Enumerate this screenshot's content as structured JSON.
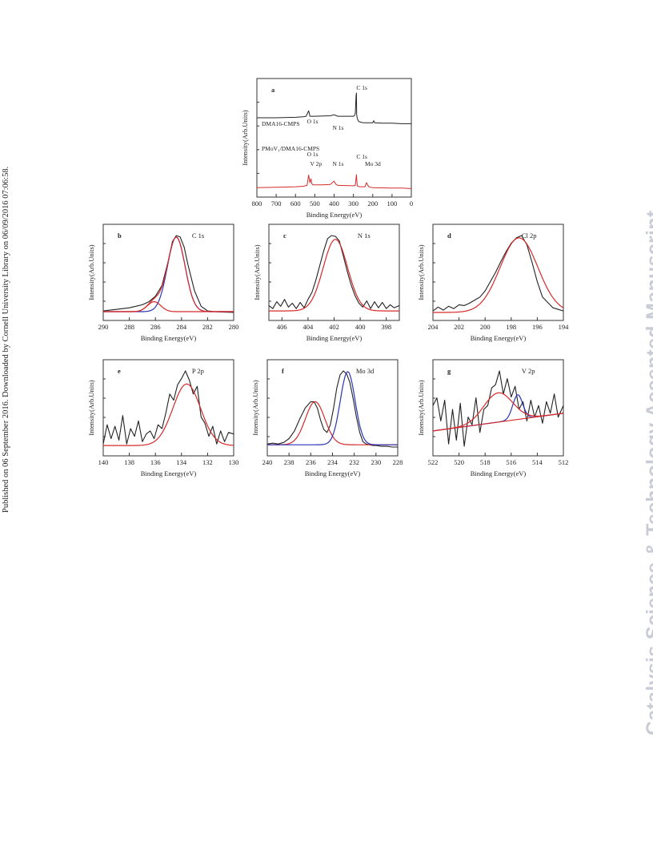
{
  "page": {
    "side_note": "Published on 06 September 2016. Downloaded by Cornell University Library on 06/09/2016 07:06:58.",
    "watermark": "Catalysis Science & Technology Accepted Manuscript"
  },
  "colors": {
    "raw": "#222222",
    "fit_red": "#d62a2a",
    "fit_blue": "#2b35b5"
  },
  "chart_data": [
    {
      "type": "line",
      "panel": "a",
      "xlabel": "Binding Energy(eV)",
      "ylabel": "Intensity(Arb.Units)",
      "xlim": [
        800,
        0
      ],
      "xticks": [
        800,
        700,
        600,
        500,
        400,
        300,
        200,
        100,
        0
      ],
      "y_scale": "arbitrary",
      "series": [
        {
          "name": "DMA16-CMPS",
          "color": "#222222",
          "x": [
            800,
            700,
            600,
            560,
            545,
            532,
            525,
            500,
            420,
            400,
            380,
            300,
            295,
            290,
            286,
            284.5,
            283,
            280,
            275,
            270,
            250,
            200,
            195,
            190,
            150,
            100,
            50,
            0
          ],
          "y": [
            0.5,
            0.5,
            0.51,
            0.52,
            0.53,
            0.64,
            0.53,
            0.53,
            0.54,
            0.56,
            0.53,
            0.53,
            0.54,
            0.59,
            0.95,
            1.0,
            0.56,
            0.49,
            0.44,
            0.42,
            0.4,
            0.4,
            0.44,
            0.4,
            0.39,
            0.39,
            0.38,
            0.38
          ],
          "labels": [
            {
              "text": "O 1s",
              "x": 532
            },
            {
              "text": "N 1s",
              "x": 400
            },
            {
              "text": "C 1s",
              "x": 284.5
            }
          ]
        },
        {
          "name": "PMoV₁/DMA16-CMPS",
          "color": "#d62a2a",
          "x": [
            800,
            700,
            600,
            560,
            540,
            532,
            525,
            520,
            516,
            510,
            460,
            420,
            400,
            390,
            380,
            300,
            290,
            284.5,
            280,
            270,
            240,
            232,
            228,
            220,
            200,
            100,
            50,
            0
          ],
          "y": [
            0.03,
            0.04,
            0.05,
            0.06,
            0.08,
            0.3,
            0.14,
            0.22,
            0.12,
            0.09,
            0.09,
            0.1,
            0.17,
            0.1,
            0.08,
            0.07,
            0.08,
            0.31,
            0.07,
            0.05,
            0.05,
            0.14,
            0.1,
            0.05,
            0.03,
            0.02,
            0.02,
            0.01
          ],
          "labels": [
            {
              "text": "O 1s",
              "x": 532
            },
            {
              "text": "V 2p",
              "x": 516
            },
            {
              "text": "N 1s",
              "x": 400
            },
            {
              "text": "C 1s",
              "x": 284.5
            },
            {
              "text": "Mo 3d",
              "x": 232
            }
          ]
        }
      ]
    },
    {
      "type": "line",
      "panel": "b",
      "label": "C 1s",
      "xlabel": "Binding Energy(eV)",
      "ylabel": "Intensity(Arb.Units)",
      "xlim": [
        290,
        280
      ],
      "xticks": [
        290,
        288,
        286,
        284,
        282,
        280
      ],
      "raw": {
        "x": [
          290,
          289,
          288,
          287.5,
          287,
          286.5,
          286,
          285.5,
          285,
          284.7,
          284.4,
          284.1,
          283.8,
          283.5,
          283,
          282.5,
          282,
          281.5,
          281,
          280
        ],
        "y": [
          0.02,
          0.04,
          0.06,
          0.08,
          0.1,
          0.14,
          0.21,
          0.35,
          0.68,
          0.92,
          1.0,
          0.98,
          0.85,
          0.62,
          0.28,
          0.08,
          0.02,
          0.01,
          0.005,
          0.0
        ]
      },
      "fits": [
        {
          "color": "#2b35b5",
          "center": 284.4,
          "fwhm": 1.6,
          "height": 0.97
        },
        {
          "color": "#d62a2a",
          "center": 286.1,
          "fwhm": 1.2,
          "height": 0.13
        }
      ],
      "envelope": {
        "color": "#d62a2a"
      },
      "baseline": 0.01
    },
    {
      "type": "line",
      "panel": "c",
      "label": "N 1s",
      "xlabel": "Binding Energy(eV)",
      "ylabel": "Intensity(Arb.Units)",
      "xlim": [
        407,
        397
      ],
      "xticks": [
        406,
        404,
        402,
        400,
        398
      ],
      "raw": {
        "x": [
          407,
          406.7,
          406.4,
          406.1,
          405.8,
          405.5,
          405.2,
          404.9,
          404.6,
          404.3,
          404.0,
          403.7,
          403.4,
          403.1,
          402.8,
          402.5,
          402.2,
          401.9,
          401.6,
          401.3,
          401.0,
          400.7,
          400.4,
          400.1,
          399.8,
          399.5,
          399.2,
          398.9,
          398.6,
          398.3,
          398.0,
          397.7,
          397.4,
          397.0
        ],
        "y": [
          0.09,
          0.05,
          0.14,
          0.08,
          0.17,
          0.07,
          0.12,
          0.05,
          0.13,
          0.06,
          0.17,
          0.26,
          0.42,
          0.61,
          0.8,
          0.96,
          1.0,
          0.99,
          0.93,
          0.74,
          0.54,
          0.36,
          0.22,
          0.12,
          0.07,
          0.15,
          0.05,
          0.14,
          0.06,
          0.13,
          0.05,
          0.1,
          0.06,
          0.09
        ]
      },
      "fits": [
        {
          "color": "#d62a2a",
          "center": 401.9,
          "fwhm": 2.2,
          "height": 0.93
        }
      ],
      "baseline": 0.02
    },
    {
      "type": "line",
      "panel": "d",
      "label": "Cl 2p",
      "xlabel": "Binding Energy(eV)",
      "ylabel": "Intensity(Arb.Units)",
      "xlim": [
        204,
        194
      ],
      "xticks": [
        204,
        202,
        200,
        198,
        196,
        194
      ],
      "raw": {
        "x": [
          204,
          203.6,
          203.2,
          202.8,
          202.4,
          202.0,
          201.6,
          201.2,
          200.8,
          200.4,
          200.0,
          199.6,
          199.2,
          198.8,
          198.4,
          198.0,
          197.6,
          197.2,
          196.8,
          196.4,
          196.0,
          195.6,
          195.2,
          194.8,
          194.4,
          194.0
        ],
        "y": [
          0.02,
          0.07,
          0.03,
          0.08,
          0.05,
          0.1,
          0.09,
          0.12,
          0.16,
          0.2,
          0.28,
          0.4,
          0.52,
          0.66,
          0.79,
          0.9,
          0.97,
          1.0,
          0.88,
          0.65,
          0.4,
          0.2,
          0.13,
          0.06,
          0.04,
          0.02
        ]
      },
      "fits": [
        {
          "color": "#d62a2a",
          "center": 197.4,
          "fwhm": 3.4,
          "height": 0.97
        }
      ],
      "baseline": 0.0
    },
    {
      "type": "line",
      "panel": "e",
      "label": "P 2p",
      "xlabel": "Binding Energy(eV)",
      "ylabel": "Intensity(Arb.Units)",
      "xlim": [
        140,
        130
      ],
      "xticks": [
        140,
        138,
        136,
        134,
        132,
        130
      ],
      "raw": {
        "x": [
          140,
          139.7,
          139.4,
          139.1,
          138.8,
          138.5,
          138.2,
          137.9,
          137.6,
          137.3,
          137.0,
          136.7,
          136.4,
          136.1,
          135.8,
          135.5,
          135.2,
          134.9,
          134.6,
          134.3,
          134.0,
          133.7,
          133.4,
          133.1,
          132.8,
          132.5,
          132.2,
          131.9,
          131.6,
          131.3,
          131.0,
          130.7,
          130.4,
          130.0
        ],
        "y": [
          0.05,
          0.3,
          0.12,
          0.28,
          0.1,
          0.42,
          0.05,
          0.25,
          0.15,
          0.35,
          0.08,
          0.18,
          0.22,
          0.12,
          0.3,
          0.25,
          0.45,
          0.7,
          0.62,
          0.82,
          0.9,
          1.0,
          0.88,
          0.7,
          0.8,
          0.4,
          0.32,
          0.15,
          0.28,
          0.05,
          0.22,
          0.08,
          0.2,
          0.18
        ]
      },
      "fits": [
        {
          "color": "#d62a2a",
          "center": 133.6,
          "fwhm": 2.5,
          "height": 0.8
        }
      ],
      "baseline": 0.03
    },
    {
      "type": "line",
      "panel": "f",
      "label": "Mo 3d",
      "xlabel": "Binding Energy(eV)",
      "ylabel": "Intensity(Arb.Units)",
      "xlim": [
        240,
        228
      ],
      "xticks": [
        240,
        238,
        236,
        234,
        232,
        230,
        228
      ],
      "raw": {
        "x": [
          240,
          239.5,
          239,
          238.5,
          238,
          237.5,
          237,
          236.5,
          236,
          235.7,
          235.4,
          235.1,
          234.8,
          234.5,
          234.2,
          233.9,
          233.6,
          233.3,
          233.0,
          232.7,
          232.4,
          232.1,
          231.8,
          231.5,
          231.2,
          230.9,
          230.6,
          230.3,
          230.0,
          229.5,
          229,
          228.5,
          228
        ],
        "y": [
          0.05,
          0.06,
          0.05,
          0.07,
          0.12,
          0.22,
          0.38,
          0.52,
          0.6,
          0.6,
          0.52,
          0.36,
          0.24,
          0.2,
          0.3,
          0.52,
          0.78,
          0.95,
          1.0,
          0.96,
          0.85,
          0.64,
          0.4,
          0.2,
          0.08,
          0.05,
          0.04,
          0.03,
          0.03,
          0.02,
          0.02,
          0.01,
          0.01
        ]
      },
      "fits": [
        {
          "color": "#d62a2a",
          "center": 235.6,
          "fwhm": 2.1,
          "height": 0.56
        },
        {
          "color": "#2b35b5",
          "center": 232.6,
          "fwhm": 1.6,
          "height": 0.95
        }
      ],
      "baseline": 0.04
    },
    {
      "type": "line",
      "panel": "g",
      "label": "V 2p",
      "xlabel": "Binding Energy(eV)",
      "ylabel": "Intensity(Arb.Units)",
      "xlim": [
        522,
        512
      ],
      "xticks": [
        522,
        520,
        518,
        516,
        514,
        512
      ],
      "raw": {
        "x": [
          522,
          521.7,
          521.4,
          521.1,
          520.8,
          520.5,
          520.2,
          519.9,
          519.6,
          519.3,
          519.0,
          518.7,
          518.4,
          518.1,
          517.8,
          517.5,
          517.2,
          516.9,
          516.6,
          516.3,
          516.0,
          515.7,
          515.4,
          515.1,
          514.8,
          514.5,
          514.2,
          513.9,
          513.6,
          513.3,
          513.0,
          512.7,
          512.4,
          512.0
        ],
        "y": [
          0.55,
          0.65,
          0.35,
          0.62,
          0.05,
          0.5,
          0.1,
          0.58,
          0.02,
          0.4,
          0.3,
          0.65,
          0.2,
          0.5,
          0.55,
          0.78,
          0.82,
          1.0,
          0.7,
          0.9,
          0.66,
          0.8,
          0.5,
          0.6,
          0.35,
          0.62,
          0.4,
          0.55,
          0.32,
          0.6,
          0.45,
          0.7,
          0.4,
          0.55
        ]
      },
      "fits": [
        {
          "color": "#2b35b5",
          "center": 515.5,
          "fwhm": 0.9,
          "height": 0.32
        }
      ],
      "envelope": {
        "color": "#d62a2a",
        "center": 517.0,
        "fwhm": 2.6,
        "height": 0.38
      },
      "linear_baseline": {
        "y_start": 0.22,
        "y_end": 0.45
      }
    }
  ]
}
